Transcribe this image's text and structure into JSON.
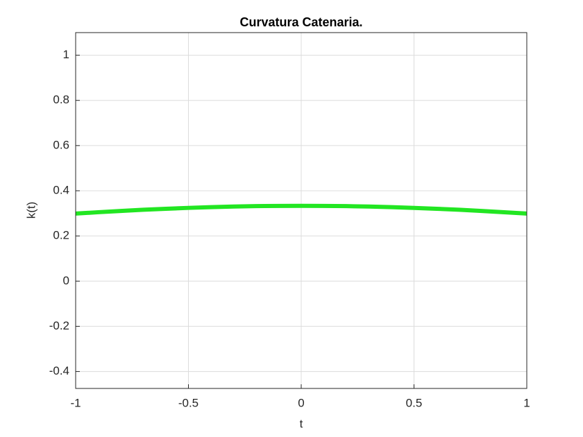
{
  "chart_data": {
    "type": "line",
    "title": "Curvatura Catenaria.",
    "x_label": "t",
    "y_label": "k(t)",
    "x": [
      -1,
      -0.9,
      -0.8,
      -0.7,
      -0.6,
      -0.5,
      -0.4,
      -0.3,
      -0.2,
      -0.1,
      0,
      0.1,
      0.2,
      0.3,
      0.4,
      0.5,
      0.6,
      0.7,
      0.8,
      0.9,
      1
    ],
    "series": [
      {
        "color": "#22e622",
        "values": [
          0.2989,
          0.305,
          0.3107,
          0.3158,
          0.3203,
          0.3242,
          0.3275,
          0.33,
          0.3319,
          0.333,
          0.3333,
          0.333,
          0.3319,
          0.33,
          0.3275,
          0.3242,
          0.3203,
          0.3158,
          0.3107,
          0.305,
          0.2989
        ]
      }
    ],
    "xlim": [
      -1,
      1
    ],
    "xticks": [
      -1,
      -0.5,
      0,
      0.5,
      1
    ],
    "ylim": [
      -0.475,
      1.1
    ],
    "yticks": [
      -0.4,
      -0.2,
      0,
      0.2,
      0.4,
      0.6,
      0.8,
      1
    ],
    "grid": true
  }
}
